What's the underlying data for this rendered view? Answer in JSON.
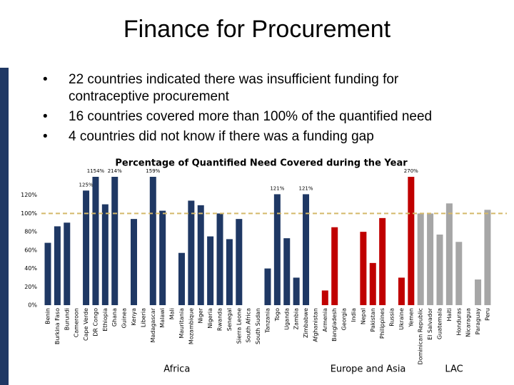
{
  "header": {
    "title": "Finance for Procurement"
  },
  "bullets": [
    "22 countries indicated there was insufficient funding for contraceptive procurement",
    "16 countries covered more than 100% of the quantified need",
    "4 countries did not know if there was a funding gap"
  ],
  "chart_data": {
    "type": "bar",
    "title": "Percentage of Quantified Need Covered during the Year",
    "categories": [
      "Benin",
      "Burkina Faso",
      "Burundi",
      "Cameroon",
      "Cape Verde",
      "DR Congo",
      "Ethiopia",
      "Ghana",
      "Guinea",
      "Kenya",
      "Liberia",
      "Madagascar",
      "Malawi",
      "Mali",
      "Mauritania",
      "Mozambique",
      "Niger",
      "Nigeria",
      "Rwanda",
      "Senegal",
      "Sierra Leone",
      "South Africa",
      "South Sudan",
      "Tanzania",
      "Togo",
      "Uganda",
      "Zambia",
      "Zimbabwe",
      "Afghanistan",
      "Armenia",
      "Bangladesh",
      "Georgia",
      "India",
      "Nepal",
      "Pakistan",
      "Philippines",
      "Russia",
      "Ukraine",
      "Yemen",
      "Dominican Republic",
      "El Salvador",
      "Guatemala",
      "Haiti",
      "Honduras",
      "Nicaragua",
      "Paraguay",
      "Peru"
    ],
    "series": [
      {
        "name": "Africa",
        "color": "#1f3864",
        "values": [
          68,
          86,
          90,
          null,
          125,
          1154,
          110,
          214,
          null,
          94,
          null,
          159,
          103,
          null,
          57,
          114,
          109,
          75,
          100,
          72,
          94,
          null,
          null,
          40,
          121,
          73,
          30,
          121,
          null,
          null,
          null,
          null,
          null,
          null,
          null,
          null,
          null,
          null,
          null,
          null,
          null,
          null,
          null,
          null,
          null,
          null,
          null
        ],
        "value_labels": [
          null,
          null,
          null,
          null,
          "125%",
          "1154%",
          null,
          "214%",
          null,
          null,
          null,
          "159%",
          null,
          null,
          null,
          null,
          null,
          null,
          null,
          null,
          null,
          null,
          null,
          null,
          "121%",
          null,
          null,
          "121%",
          null,
          null,
          null,
          null,
          null,
          null,
          null,
          null,
          null,
          null,
          null,
          null,
          null,
          null,
          null,
          null,
          null,
          null,
          null
        ]
      },
      {
        "name": "Europe and Asia",
        "color": "#c00000",
        "values": [
          null,
          null,
          null,
          null,
          null,
          null,
          null,
          null,
          null,
          null,
          null,
          null,
          null,
          null,
          null,
          null,
          null,
          null,
          null,
          null,
          null,
          null,
          null,
          null,
          null,
          null,
          null,
          null,
          null,
          16,
          85,
          null,
          null,
          80,
          46,
          95,
          null,
          30,
          270,
          null,
          null,
          null,
          null,
          null,
          null,
          null,
          null
        ],
        "value_labels": [
          null,
          null,
          null,
          null,
          null,
          null,
          null,
          null,
          null,
          null,
          null,
          null,
          null,
          null,
          null,
          null,
          null,
          null,
          null,
          null,
          null,
          null,
          null,
          null,
          null,
          null,
          null,
          null,
          null,
          null,
          null,
          null,
          null,
          null,
          null,
          null,
          null,
          null,
          "270%",
          null,
          null,
          null,
          null,
          null,
          null,
          null,
          null
        ]
      },
      {
        "name": "LAC",
        "color": "#a6a6a6",
        "values": [
          null,
          null,
          null,
          null,
          null,
          null,
          null,
          null,
          null,
          null,
          null,
          null,
          null,
          null,
          null,
          null,
          null,
          null,
          null,
          null,
          null,
          null,
          null,
          null,
          null,
          null,
          null,
          null,
          null,
          null,
          null,
          null,
          null,
          null,
          null,
          null,
          null,
          null,
          null,
          100,
          100,
          77,
          111,
          69,
          null,
          28,
          104
        ]
      }
    ],
    "ylim": [
      0,
      140
    ],
    "yticks": [
      {
        "value": 0,
        "label": "0%"
      },
      {
        "value": 20,
        "label": "20%"
      },
      {
        "value": 40,
        "label": "40%"
      },
      {
        "value": 60,
        "label": "60%"
      },
      {
        "value": 80,
        "label": "80%"
      },
      {
        "value": 100,
        "label": "100%"
      },
      {
        "value": 120,
        "label": "120%"
      }
    ],
    "reference_line": 100,
    "reference_color": "#d4b96a",
    "grid": false
  }
}
